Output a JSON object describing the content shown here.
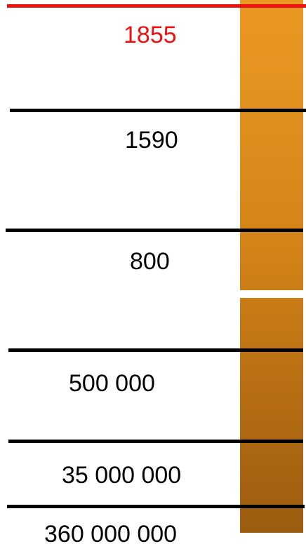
{
  "column": {
    "color_top": "#ea9a22",
    "color_bottom": "#9c5c10"
  },
  "lines": [
    {
      "color": "#ee1111"
    },
    {
      "color": "#000000"
    },
    {
      "color": "#000000"
    },
    {
      "color": "#000000"
    },
    {
      "color": "#000000"
    },
    {
      "color": "#000000"
    }
  ],
  "labels": [
    {
      "text": "1855",
      "color": "#ee1111"
    },
    {
      "text": "1590",
      "color": "#000000"
    },
    {
      "text": "800",
      "color": "#000000"
    },
    {
      "text": "500 000",
      "color": "#000000"
    },
    {
      "text": "35 000 000",
      "color": "#000000"
    },
    {
      "text": "360 000 000",
      "color": "#000000"
    }
  ]
}
